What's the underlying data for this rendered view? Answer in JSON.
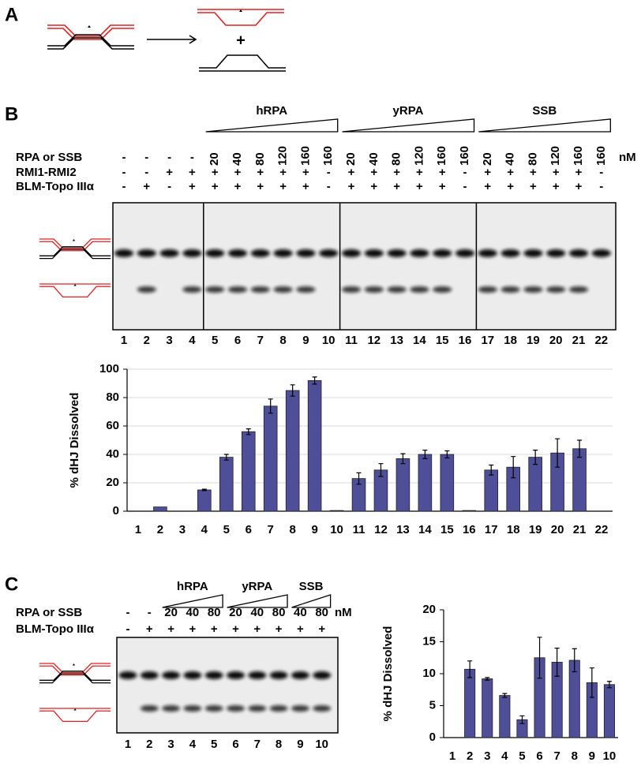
{
  "panel_labels": [
    "A",
    "B",
    "C"
  ],
  "panel_a": {
    "plus": "+"
  },
  "panel_b_gel": {
    "groups": [
      "hRPA",
      "yRPA",
      "SSB"
    ],
    "rows": [
      {
        "label": "RPA or SSB",
        "values": [
          "-",
          "-",
          "-",
          "-",
          "20",
          "40",
          "80",
          "120",
          "160",
          "160",
          "20",
          "40",
          "80",
          "120",
          "160",
          "160",
          "20",
          "40",
          "80",
          "120",
          "160",
          "160"
        ]
      },
      {
        "label": "RMI1-RMI2",
        "values": [
          "-",
          "-",
          "+",
          "+",
          "+",
          "+",
          "+",
          "+",
          "+",
          "-",
          "+",
          "+",
          "+",
          "+",
          "+",
          "-",
          "+",
          "+",
          "+",
          "+",
          "+",
          "-"
        ]
      },
      {
        "label": "BLM-Topo IIIα",
        "values": [
          "-",
          "+",
          "-",
          "+",
          "+",
          "+",
          "+",
          "+",
          "+",
          "-",
          "+",
          "+",
          "+",
          "+",
          "+",
          "-",
          "+",
          "+",
          "+",
          "+",
          "+",
          "-"
        ]
      }
    ],
    "unit": "nM",
    "lanes": [
      "1",
      "2",
      "3",
      "4",
      "5",
      "6",
      "7",
      "8",
      "9",
      "10",
      "11",
      "12",
      "13",
      "14",
      "15",
      "16",
      "17",
      "18",
      "19",
      "20",
      "21",
      "22"
    ]
  },
  "panel_c_gel": {
    "groups": [
      "hRPA",
      "yRPA",
      "SSB"
    ],
    "rows": [
      {
        "label": "RPA or SSB",
        "values": [
          "-",
          "-",
          "20",
          "40",
          "80",
          "20",
          "40",
          "80",
          "40",
          "80"
        ]
      },
      {
        "label": "BLM-Topo IIIα",
        "values": [
          "-",
          "+",
          "+",
          "+",
          "+",
          "+",
          "+",
          "+",
          "+",
          "+"
        ]
      }
    ],
    "unit": "nM",
    "lanes": [
      "1",
      "2",
      "3",
      "4",
      "5",
      "6",
      "7",
      "8",
      "9",
      "10"
    ]
  },
  "chart_data": [
    {
      "type": "bar",
      "ylabel": "% dHJ Dissolved",
      "color": "#4f4f99",
      "grid": true,
      "categories": [
        "1",
        "2",
        "3",
        "4",
        "5",
        "6",
        "7",
        "8",
        "9",
        "10",
        "11",
        "12",
        "13",
        "14",
        "15",
        "16",
        "17",
        "18",
        "19",
        "20",
        "21",
        "22"
      ],
      "values": [
        0,
        3,
        0,
        15,
        38,
        56,
        74,
        85,
        92,
        0.5,
        23,
        29,
        37,
        40,
        40,
        0.5,
        29,
        31,
        38,
        41,
        44,
        0
      ],
      "errors": [
        null,
        null,
        null,
        0.5,
        2,
        2,
        5,
        4,
        2.5,
        null,
        4,
        4.5,
        3.5,
        3,
        2.5,
        null,
        3.5,
        7.5,
        5,
        10,
        6,
        null
      ],
      "ylim": [
        0,
        100
      ],
      "yticks": [
        0,
        20,
        40,
        60,
        80,
        100
      ]
    },
    {
      "type": "bar",
      "ylabel": "% dHJ Dissolved",
      "color": "#4f4f99",
      "grid": false,
      "categories": [
        "1",
        "2",
        "3",
        "4",
        "5",
        "6",
        "7",
        "8",
        "9",
        "10"
      ],
      "values": [
        0,
        10.7,
        9.2,
        6.6,
        2.8,
        12.5,
        11.8,
        12.1,
        8.6,
        8.3
      ],
      "errors": [
        null,
        1.3,
        0.2,
        0.3,
        0.6,
        3.2,
        2.2,
        1.8,
        2.3,
        0.5
      ],
      "ylim": [
        0,
        20
      ],
      "yticks": [
        0,
        5,
        10,
        15,
        20
      ]
    }
  ]
}
